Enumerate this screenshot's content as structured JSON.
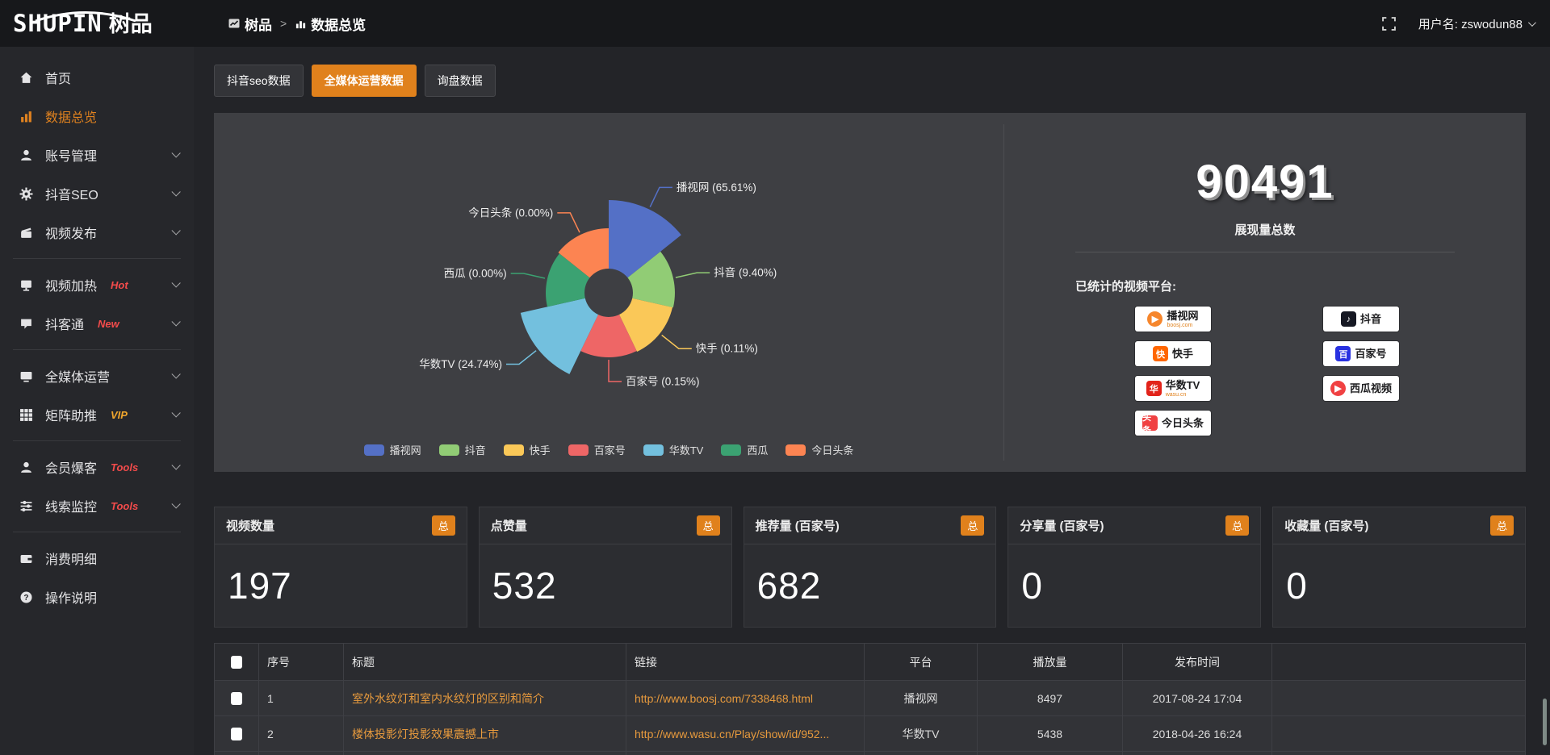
{
  "brand": {
    "name": "SHUPIN",
    "name_cn": "树品"
  },
  "topbar": {
    "breadcrumb_root": "树品",
    "breadcrumb_separator": ">",
    "breadcrumb_current": "数据总览",
    "username": "用户名: zswodun88"
  },
  "sidebar": {
    "items": [
      {
        "label": "首页",
        "icon": "home"
      },
      {
        "label": "数据总览",
        "icon": "chart",
        "active": true
      },
      {
        "label": "账号管理",
        "icon": "user",
        "chevron": true
      },
      {
        "label": "抖音SEO",
        "icon": "gear",
        "chevron": true
      },
      {
        "label": "视频发布",
        "icon": "clapper",
        "chevron": true,
        "divider_after": true
      },
      {
        "label": "视频加热",
        "icon": "heat",
        "badge": "Hot",
        "badge_color": "#f34b4b",
        "chevron": true
      },
      {
        "label": "抖客通",
        "icon": "chat",
        "badge": "New",
        "badge_color": "#f34b4b",
        "chevron": true,
        "divider_after": true
      },
      {
        "label": "全媒体运营",
        "icon": "screen",
        "chevron": true
      },
      {
        "label": "矩阵助推",
        "icon": "grid",
        "badge": "VIP",
        "badge_color": "#f0a62d",
        "chevron": true,
        "divider_after": true
      },
      {
        "label": "会员爆客",
        "icon": "member",
        "badge": "Tools",
        "badge_color": "#f34b4b",
        "chevron": true
      },
      {
        "label": "线索监控",
        "icon": "sliders",
        "badge": "Tools",
        "badge_color": "#f34b4b",
        "chevron": true,
        "divider_after": true
      },
      {
        "label": "消费明细",
        "icon": "wallet"
      },
      {
        "label": "操作说明",
        "icon": "help"
      }
    ]
  },
  "tabs": [
    {
      "label": "抖音seo数据",
      "active": false
    },
    {
      "label": "全媒体运营数据",
      "active": true
    },
    {
      "label": "询盘数据",
      "active": false
    }
  ],
  "chart_data": {
    "type": "pie",
    "variant": "nightingale-rose",
    "title": "",
    "unit": "percent",
    "items": [
      {
        "name": "播视网",
        "pct": 65.61,
        "color": "#5470c6",
        "radius_px": 115
      },
      {
        "name": "抖音",
        "pct": 9.4,
        "color": "#91cc75",
        "radius_px": 82
      },
      {
        "name": "快手",
        "pct": 0.11,
        "color": "#fac858",
        "radius_px": 81
      },
      {
        "name": "百家号",
        "pct": 0.15,
        "color": "#ee6666",
        "radius_px": 80
      },
      {
        "name": "华数TV",
        "pct": 24.74,
        "color": "#73c0de",
        "radius_px": 112
      },
      {
        "name": "西瓜",
        "pct": 0.0,
        "color": "#3ba272",
        "radius_px": 78
      },
      {
        "name": "今日头条",
        "pct": 0.0,
        "color": "#fc8452",
        "radius_px": 80
      }
    ],
    "inner_radius_px": 30,
    "legend": [
      "播视网",
      "抖音",
      "快手",
      "百家号",
      "华数TV",
      "西瓜",
      "今日头条"
    ],
    "legend_position": "bottom",
    "label_format": "{name} ({pct}%)"
  },
  "summary": {
    "total_value": "90491",
    "total_label": "展现量总数",
    "platforms_label": "已统计的视频平台:",
    "platforms": [
      {
        "name": "播视网",
        "sub": "boosj.com",
        "glyph": "▶",
        "glyph_bg": "#f6862c",
        "glyph_shape": "circle"
      },
      {
        "name": "抖音",
        "glyph": "♪",
        "glyph_bg": "#161823",
        "glyph_shape": "rounded"
      },
      {
        "name": "快手",
        "glyph": "快",
        "glyph_bg": "#ff6600",
        "glyph_shape": "rounded"
      },
      {
        "name": "百家号",
        "glyph": "百",
        "glyph_bg": "#2932e1",
        "glyph_shape": "rounded"
      },
      {
        "name": "华数TV",
        "sub": "wasu.cn",
        "glyph": "华",
        "glyph_bg": "#e2231a",
        "glyph_shape": "rounded"
      },
      {
        "name": "西瓜视频",
        "glyph": "▶",
        "glyph_bg": "#f04142",
        "glyph_shape": "circle"
      },
      {
        "name": "今日头条",
        "glyph": "头条",
        "glyph_bg": "#f04142",
        "glyph_shape": "rounded"
      }
    ]
  },
  "stats": [
    {
      "title": "视频数量",
      "badge": "总",
      "value": "197"
    },
    {
      "title": "点赞量",
      "badge": "总",
      "value": "532"
    },
    {
      "title": "推荐量 (百家号)",
      "badge": "总",
      "value": "682"
    },
    {
      "title": "分享量 (百家号)",
      "badge": "总",
      "value": "0"
    },
    {
      "title": "收藏量 (百家号)",
      "badge": "总",
      "value": "0"
    }
  ],
  "table": {
    "headers": [
      "序号",
      "标题",
      "链接",
      "平台",
      "播放量",
      "发布时间"
    ],
    "rows": [
      {
        "index": "1",
        "title": "室外水纹灯和室内水纹灯的区别和简介",
        "link": "http://www.boosj.com/7338468.html",
        "platform": "播视网",
        "plays": "8497",
        "published": "2017-08-24 17:04"
      },
      {
        "index": "2",
        "title": "楼体投影灯投影效果震撼上市",
        "link": "http://www.wasu.cn/Play/show/id/952...",
        "platform": "华数TV",
        "plays": "5438",
        "published": "2018-04-26 16:24"
      },
      {
        "index": "",
        "title": "",
        "link": "",
        "platform": "",
        "plays": "",
        "published": ""
      }
    ]
  },
  "colors": {
    "accent": "#e0811c",
    "link": "#e79a3d"
  }
}
